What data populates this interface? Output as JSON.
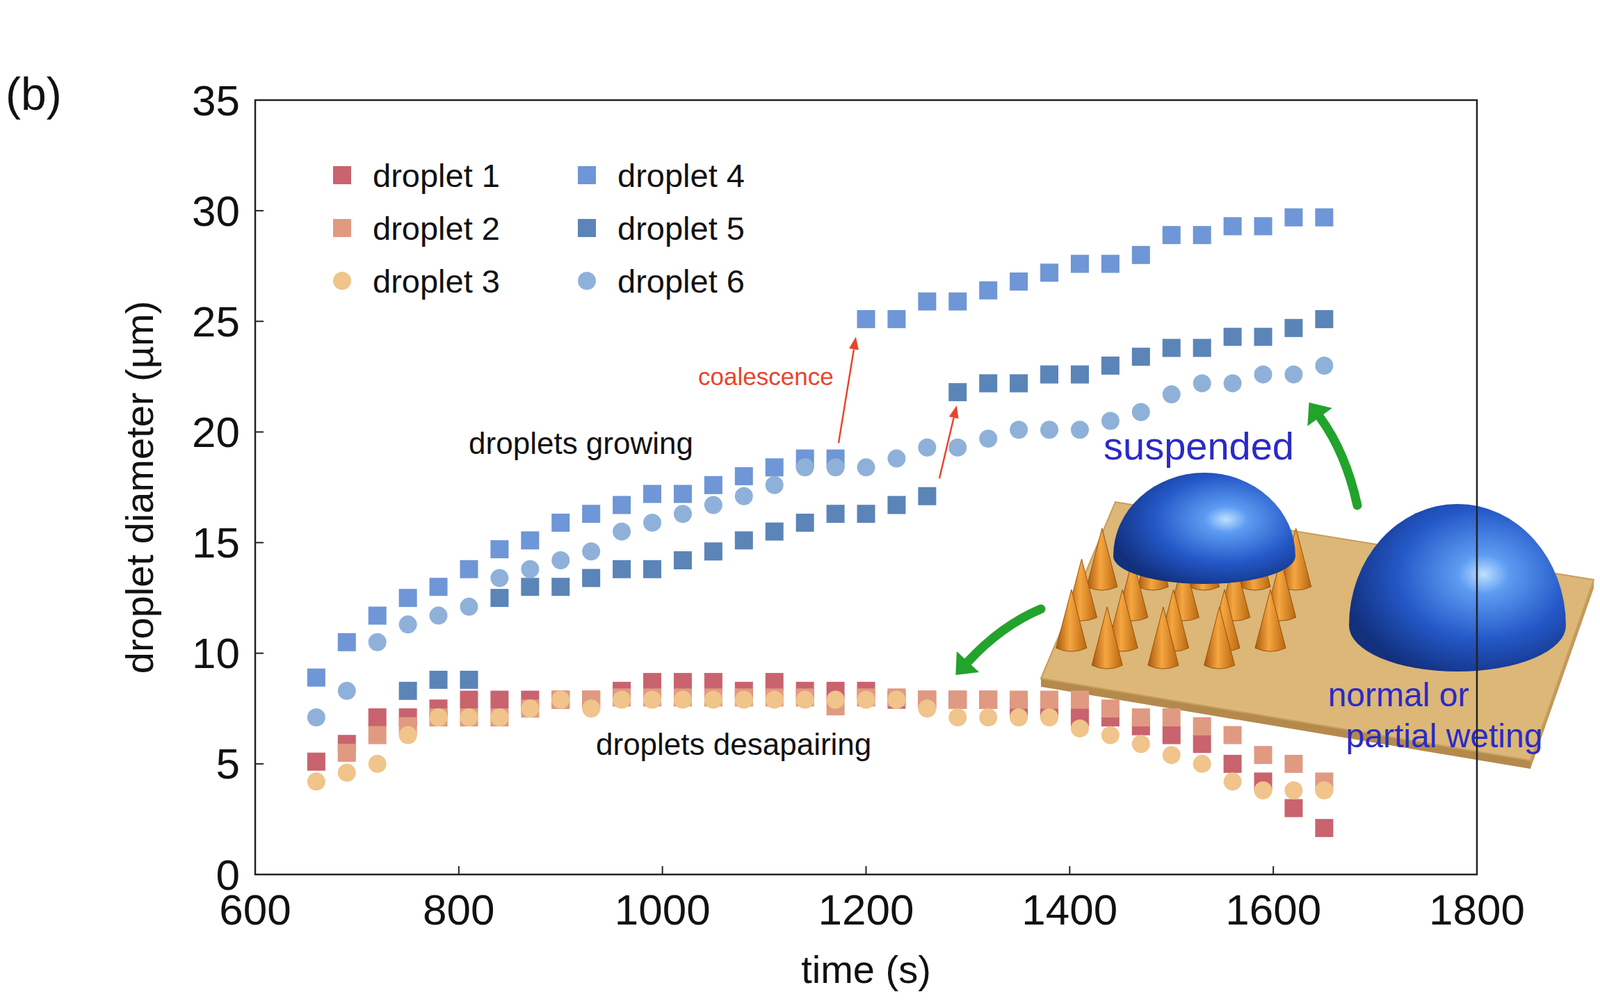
{
  "chart_data": {
    "type": "scatter",
    "title": "(b)",
    "x_label": "time (s)",
    "y_label": "droplet diameter (µm)",
    "xlim": [
      600,
      1800
    ],
    "xticks": [
      600,
      800,
      1000,
      1200,
      1400,
      1600,
      1800
    ],
    "ylim": [
      0,
      35
    ],
    "yticks": [
      0,
      5,
      10,
      15,
      20,
      25,
      30,
      35
    ],
    "grid": false,
    "legend": "top-left",
    "annotations": [
      "droplets growing",
      "coalescence",
      "droplets desapairing",
      "suspended",
      "normal or",
      "partial weting"
    ],
    "x": [
      660,
      690,
      720,
      750,
      780,
      810,
      840,
      870,
      900,
      930,
      960,
      990,
      1020,
      1050,
      1080,
      1110,
      1140,
      1170,
      1200,
      1230,
      1260,
      1290,
      1320,
      1350,
      1380,
      1410,
      1440,
      1470,
      1500,
      1530,
      1560,
      1590,
      1620,
      1650
    ],
    "series": [
      {
        "name": "droplet 1",
        "color": "#c9636e",
        "marker": "square",
        "values": [
          5.1,
          5.9,
          7.1,
          7.1,
          7.5,
          7.9,
          7.9,
          7.9,
          7.9,
          7.9,
          8.3,
          8.7,
          8.7,
          8.7,
          8.3,
          8.7,
          8.3,
          8.3,
          8.3,
          7.9,
          7.9,
          7.9,
          7.9,
          7.5,
          7.5,
          7.1,
          7.1,
          6.7,
          6.3,
          5.9,
          5.0,
          4.2,
          3.0,
          2.1
        ]
      },
      {
        "name": "droplet 2",
        "color": "#e09a82",
        "marker": "square",
        "values": [
          null,
          5.5,
          6.3,
          6.7,
          7.1,
          7.1,
          7.1,
          7.5,
          7.9,
          7.9,
          8.0,
          8.0,
          8.0,
          8.0,
          8.0,
          8.0,
          8.0,
          7.6,
          8.0,
          8.0,
          7.9,
          7.9,
          7.9,
          7.9,
          7.9,
          7.9,
          7.5,
          7.1,
          7.1,
          6.7,
          6.3,
          5.4,
          5.0,
          4.2
        ]
      },
      {
        "name": "droplet 3",
        "color": "#f0c48a",
        "marker": "circle",
        "values": [
          4.2,
          4.6,
          5.0,
          6.3,
          7.1,
          7.1,
          7.1,
          7.5,
          7.9,
          7.5,
          7.9,
          7.9,
          7.9,
          7.9,
          7.9,
          7.9,
          7.9,
          7.9,
          7.9,
          7.9,
          7.5,
          7.1,
          7.1,
          7.1,
          7.1,
          6.6,
          6.3,
          5.9,
          5.4,
          5.0,
          4.2,
          3.8,
          3.8,
          3.8
        ]
      },
      {
        "name": "droplet 4",
        "color": "#6f96d6",
        "marker": "square",
        "values": [
          8.9,
          10.5,
          11.7,
          12.5,
          13.0,
          13.8,
          14.7,
          15.1,
          15.9,
          16.3,
          16.7,
          17.2,
          17.2,
          17.6,
          18.0,
          18.4,
          18.8,
          18.8,
          25.1,
          25.1,
          25.9,
          25.9,
          26.4,
          26.8,
          27.2,
          27.6,
          27.6,
          28.0,
          28.9,
          28.9,
          29.3,
          29.3,
          29.7,
          29.7
        ]
      },
      {
        "name": "droplet 5",
        "color": "#5b84b8",
        "marker": "square",
        "values": [
          null,
          null,
          null,
          8.3,
          8.8,
          8.8,
          12.5,
          13.0,
          13.0,
          13.4,
          13.8,
          13.8,
          14.2,
          14.6,
          15.1,
          15.5,
          15.9,
          16.3,
          16.3,
          16.7,
          17.1,
          21.8,
          22.2,
          22.2,
          22.6,
          22.6,
          23.0,
          23.4,
          23.8,
          23.8,
          24.3,
          24.3,
          24.7,
          25.1
        ]
      },
      {
        "name": "droplet 6",
        "color": "#8fb1d9",
        "marker": "circle",
        "values": [
          7.1,
          8.3,
          10.5,
          11.3,
          11.7,
          12.1,
          13.4,
          13.8,
          14.2,
          14.6,
          15.5,
          15.9,
          16.3,
          16.7,
          17.1,
          17.6,
          18.4,
          18.4,
          18.4,
          18.8,
          19.3,
          19.3,
          19.7,
          20.1,
          20.1,
          20.1,
          20.5,
          20.9,
          21.7,
          22.2,
          22.2,
          22.6,
          22.6,
          23.0
        ]
      }
    ]
  }
}
